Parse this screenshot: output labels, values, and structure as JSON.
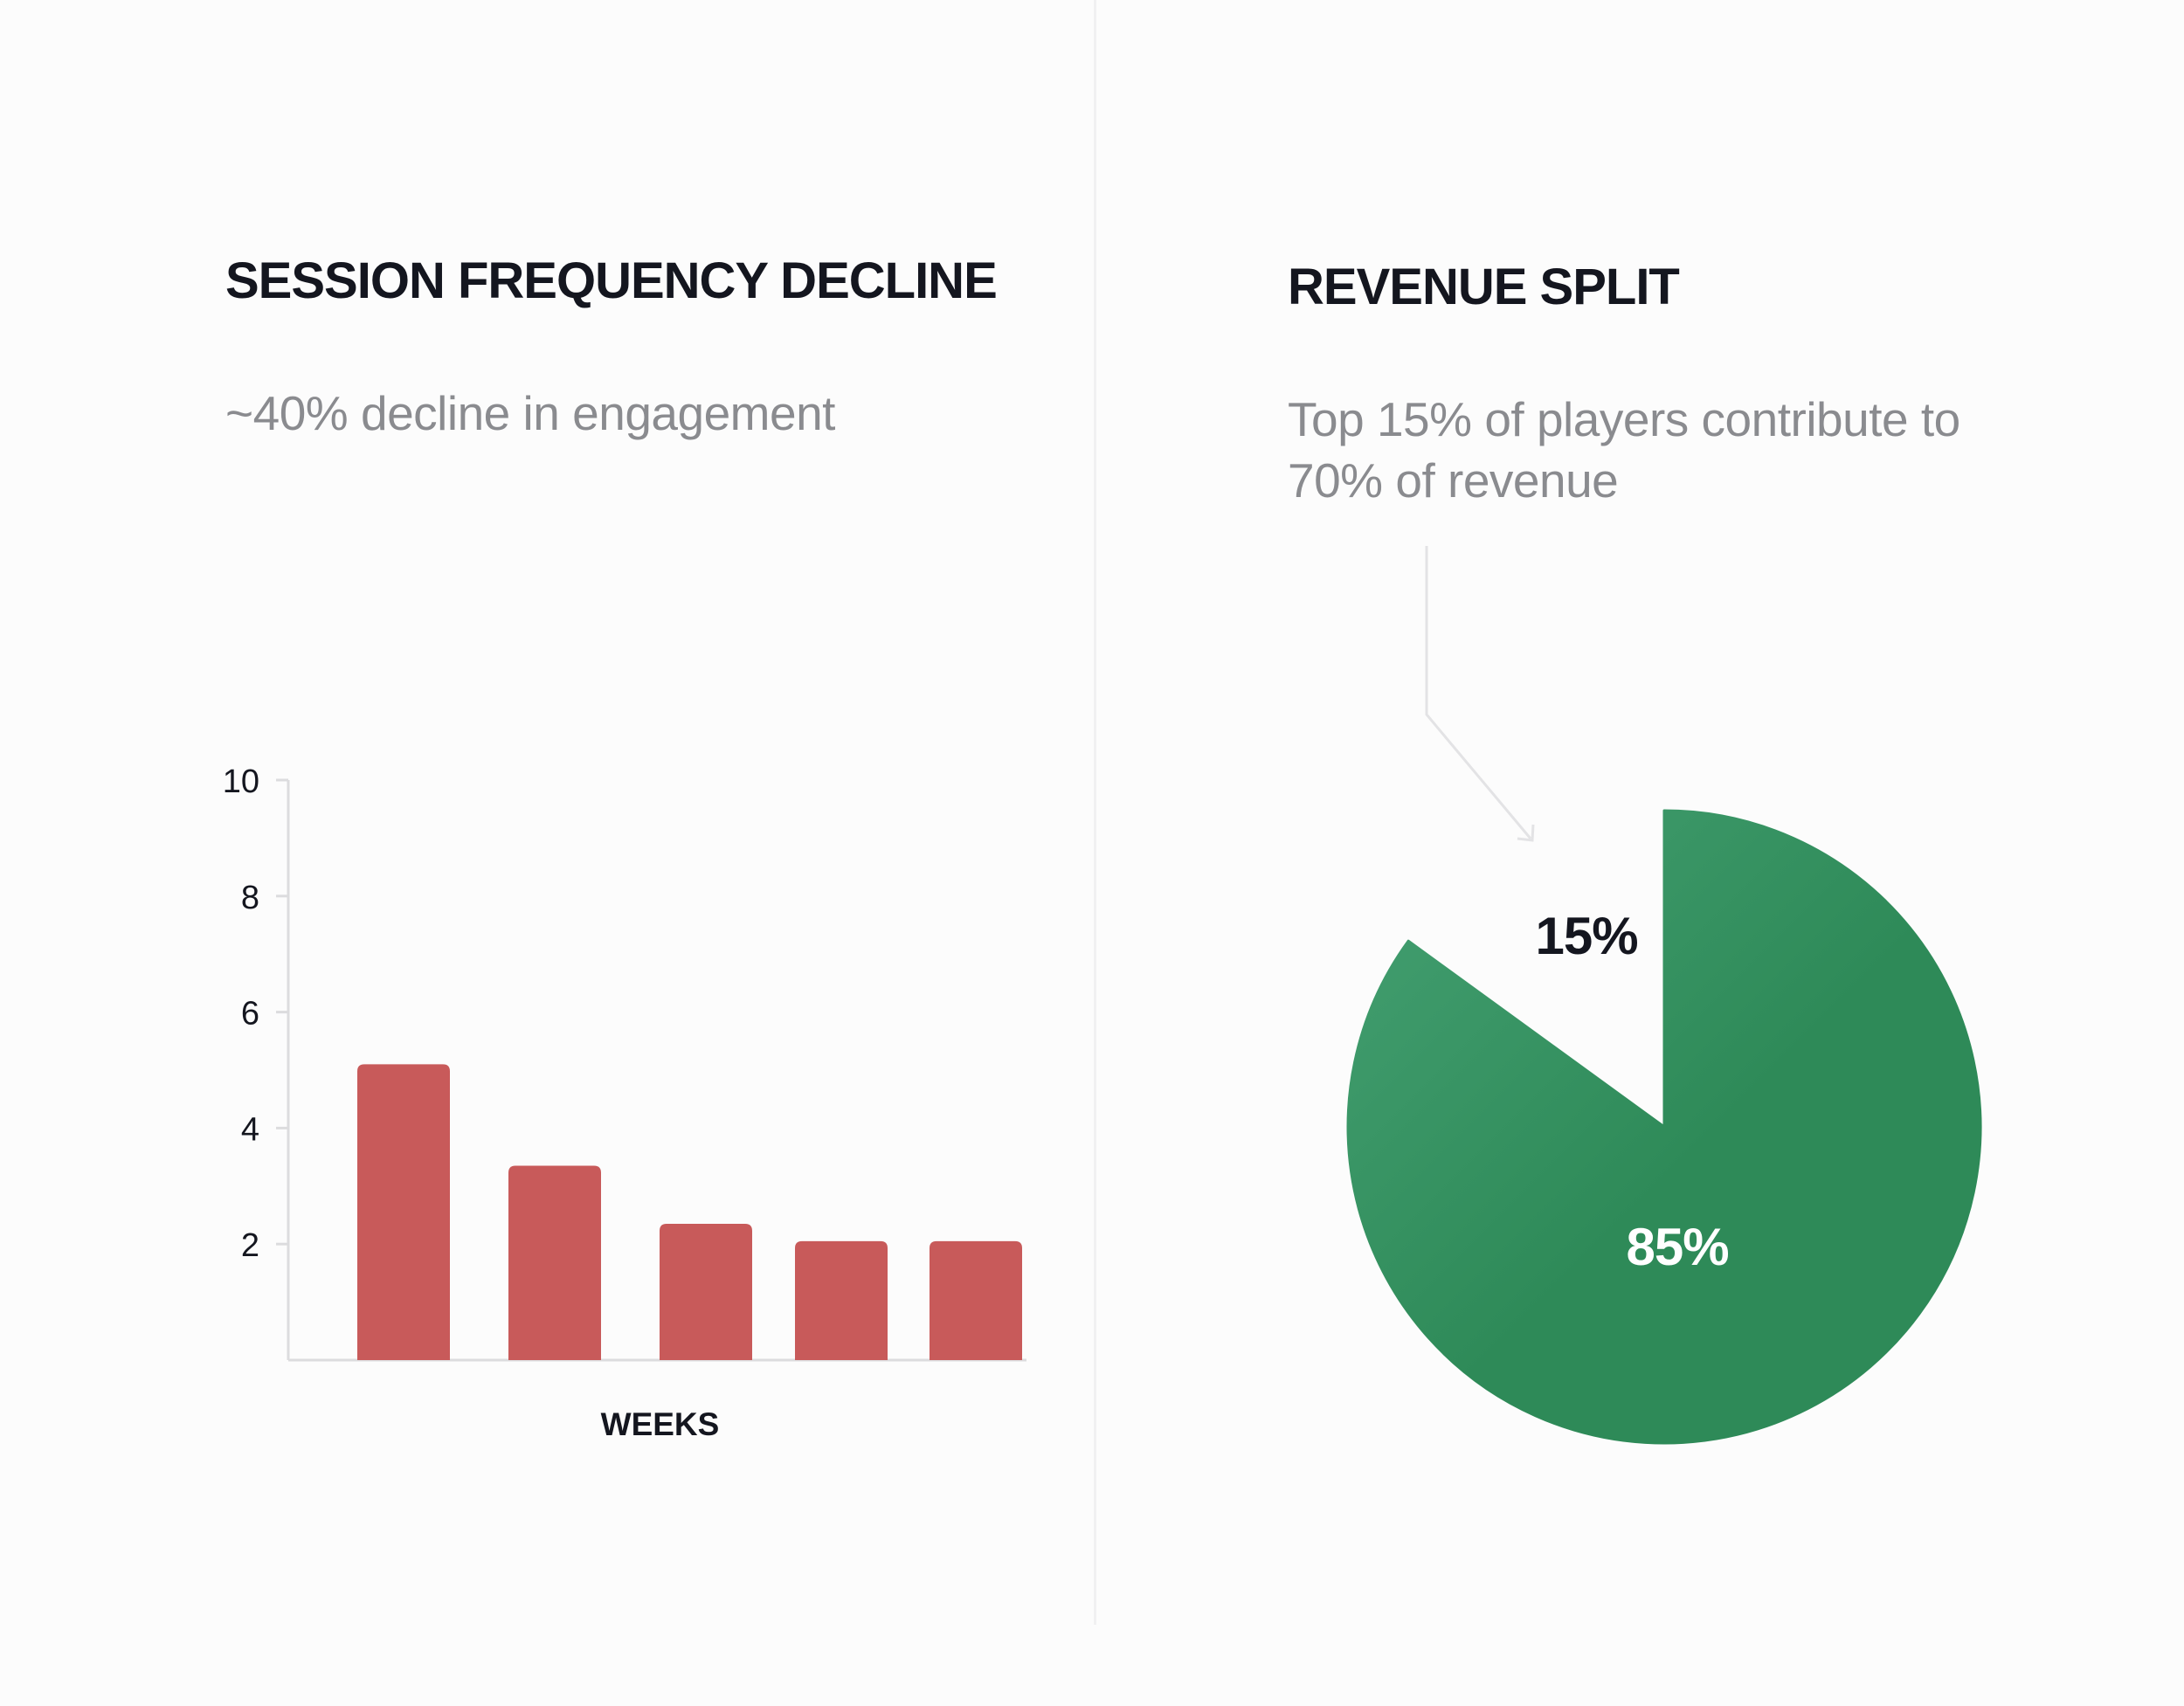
{
  "left_panel": {
    "title": "SESSION FREQUENCY DECLINE",
    "subtitle": "~40% decline in engagement"
  },
  "right_panel": {
    "title": "REVENUE SPLIT",
    "subtitle": "Top 15% of players contribute to 70% of revenue"
  },
  "colors": {
    "bar": "#c85a5a",
    "pie_light": "#45a173",
    "pie_dark": "#2e8a58",
    "axis": "#dcdcde",
    "callout": "#e3e3e5"
  },
  "chart_data": [
    {
      "type": "bar",
      "title": "SESSION FREQUENCY DECLINE",
      "subtitle": "~40% decline in engagement",
      "xlabel": "WEEKS",
      "ylabel": "",
      "categories": [
        "",
        "",
        "",
        "",
        ""
      ],
      "values": [
        5.1,
        3.35,
        2.35,
        2.05,
        2.05
      ],
      "ylim": [
        0,
        10
      ],
      "yticks": [
        2,
        4,
        6,
        8,
        10
      ],
      "grid": false
    },
    {
      "type": "pie",
      "title": "REVENUE SPLIT",
      "subtitle": "Top 15% of players contribute to 70% of revenue",
      "slices": [
        {
          "label": "15%",
          "value": 15,
          "exploded": true
        },
        {
          "label": "85%",
          "value": 85,
          "exploded": false
        }
      ]
    }
  ]
}
